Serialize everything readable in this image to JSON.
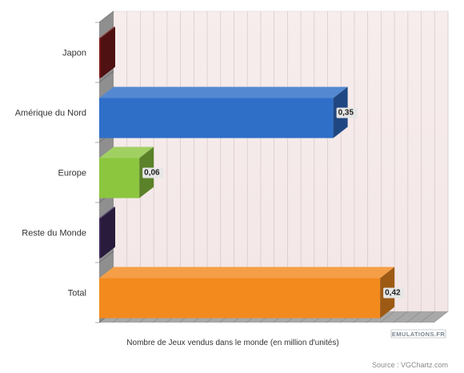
{
  "chart_data": {
    "type": "bar",
    "orientation": "horizontal",
    "categories": [
      "Japon",
      "Amérique du Nord",
      "Europe",
      "Reste du Monde",
      "Total"
    ],
    "values": [
      0.0,
      0.35,
      0.06,
      0.0,
      0.42
    ],
    "data_labels": [
      "",
      "0,35",
      "0,06",
      "",
      "0,42"
    ],
    "colors": [
      "#7a1a1a",
      "#2f6fc8",
      "#8cc63f",
      "#3d2a5a",
      "#f28a1e"
    ],
    "xlabel": "Nombre de Jeux vendus dans le monde (en million d'unités)",
    "ylabel": "",
    "xlim": [
      0,
      0.5
    ],
    "grid": true,
    "legend": "none",
    "three_d": true,
    "source": "Source : VGChartz.com",
    "watermark": "EMULATIONS.FR"
  }
}
